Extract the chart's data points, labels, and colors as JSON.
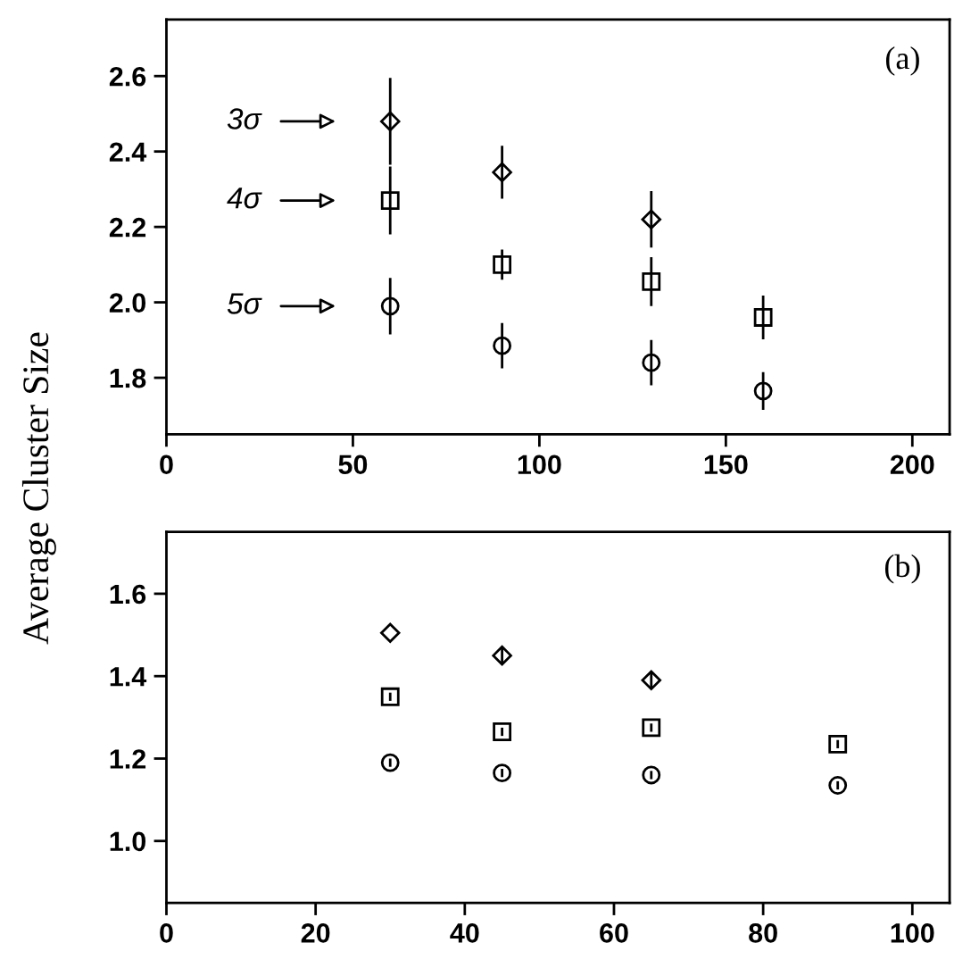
{
  "chart_data": [
    {
      "type": "scatter",
      "ylabel": "Average Cluster Size",
      "xlim": [
        0,
        210
      ],
      "xticks": [
        0,
        50,
        100,
        150,
        200
      ],
      "ylim": [
        1.65,
        2.75
      ],
      "yticks": [
        1.8,
        {
          "value": 2.0,
          "label": "2.0"
        },
        2.2,
        2.4,
        2.6
      ],
      "series": [
        {
          "color": "#000000",
          "marker": "diamond",
          "x": [
            60,
            90,
            130
          ],
          "values": [
            2.48,
            2.345,
            2.22
          ],
          "errors": [
            0.115,
            0.07,
            0.075
          ]
        },
        {
          "color": "#000000",
          "marker": "square",
          "x": [
            60,
            90,
            130,
            160
          ],
          "values": [
            2.27,
            2.1,
            2.055,
            1.96
          ],
          "errors": [
            0.09,
            0.04,
            0.065,
            0.058
          ]
        },
        {
          "color": "#000000",
          "marker": "circle",
          "x": [
            60,
            90,
            130,
            160
          ],
          "values": [
            1.99,
            1.885,
            1.84,
            1.765
          ],
          "errors": [
            0.075,
            0.06,
            0.06,
            0.05
          ]
        }
      ],
      "annotations": [
        "(a)",
        "3σ",
        "4σ",
        "5σ"
      ]
    },
    {
      "type": "scatter",
      "xlim": [
        0,
        105
      ],
      "xticks": [
        0,
        20,
        40,
        60,
        80,
        100
      ],
      "ylim": [
        0.85,
        1.75
      ],
      "yticks": [
        {
          "value": 1.0,
          "label": "1.0"
        },
        1.2,
        1.4,
        1.6
      ],
      "series": [
        {
          "color": "#000000",
          "marker": "diamond",
          "x": [
            30,
            45,
            65
          ],
          "values": [
            1.505,
            1.45,
            1.39
          ],
          "errors": [
            null,
            0.02,
            0.02
          ]
        },
        {
          "color": "#000000",
          "marker": "square",
          "x": [
            30,
            45,
            65,
            90
          ],
          "values": [
            1.35,
            1.265,
            1.275,
            1.235
          ],
          "errors": [
            0.01,
            0.01,
            0.01,
            0.01
          ]
        },
        {
          "color": "#000000",
          "marker": "circle",
          "x": [
            30,
            45,
            65,
            90
          ],
          "values": [
            1.19,
            1.165,
            1.16,
            1.135
          ],
          "errors": [
            0.01,
            0.01,
            0.01,
            0.01
          ]
        }
      ],
      "annotations": [
        "(b)"
      ]
    }
  ]
}
